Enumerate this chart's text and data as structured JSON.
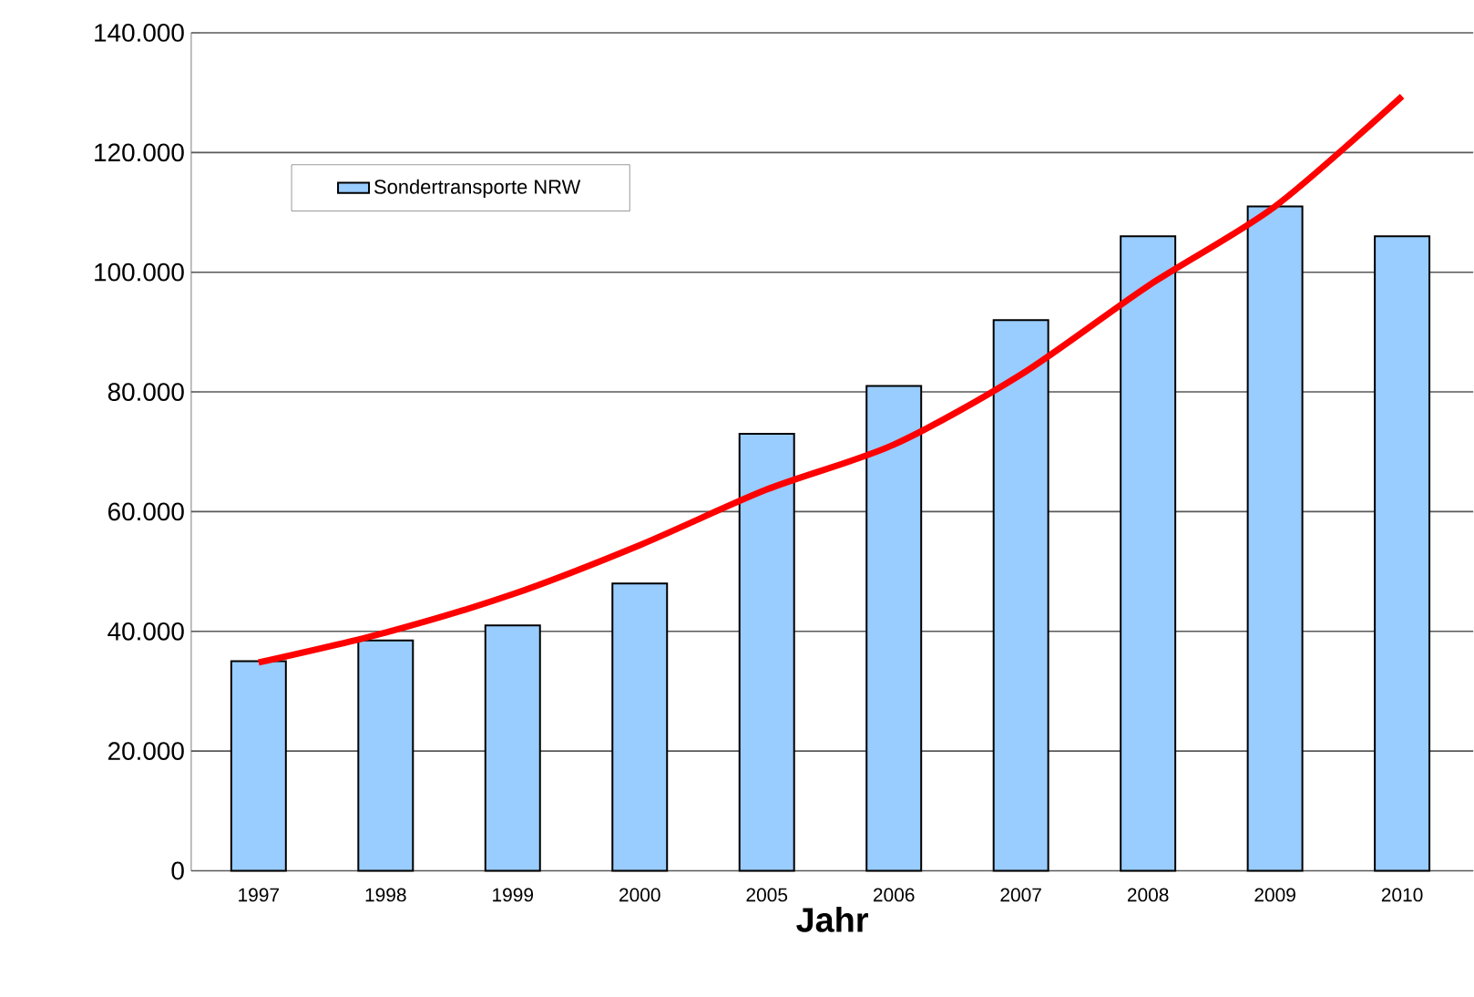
{
  "chart_data": {
    "type": "bar",
    "xlabel": "Jahr",
    "categories": [
      "1997",
      "1998",
      "1999",
      "2000",
      "2005",
      "2006",
      "2007",
      "2008",
      "2009",
      "2010"
    ],
    "series": [
      {
        "name": "Sondertransporte NRW",
        "color": "#99ccff",
        "values": [
          35000,
          38500,
          41000,
          48000,
          73000,
          81000,
          92000,
          106000,
          111000,
          106000
        ]
      },
      {
        "type": "line",
        "color": "#ff0000",
        "values": [
          34800,
          39800,
          46200,
          54400,
          63700,
          71200,
          82900,
          97700,
          111000,
          129400
        ]
      }
    ],
    "ylim": [
      0,
      140000
    ],
    "yticks": [
      {
        "value": 0,
        "label": "0"
      },
      {
        "value": 20000,
        "label": "20.000"
      },
      {
        "value": 40000,
        "label": "40.000"
      },
      {
        "value": 60000,
        "label": "60.000"
      },
      {
        "value": 80000,
        "label": "80.000"
      },
      {
        "value": 100000,
        "label": "100.000"
      },
      {
        "value": 120000,
        "label": "120.000"
      },
      {
        "value": 140000,
        "label": "140.000"
      }
    ],
    "grid": "y",
    "legend": "top left",
    "marker": "none",
    "line_style": "solid"
  }
}
